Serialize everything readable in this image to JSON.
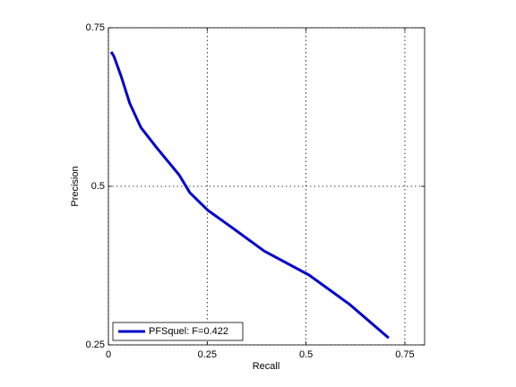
{
  "chart_data": {
    "type": "line",
    "x_label": "Recall",
    "y_label": "Precision",
    "xlim": [
      0,
      0.8
    ],
    "xticks": [
      0,
      0.25,
      0.5,
      0.75
    ],
    "ylim": [
      0.25,
      0.75
    ],
    "yticks": [
      0.25,
      0.5,
      0.75
    ],
    "grid": true,
    "legend": "lower left",
    "x": [
      0.007,
      0.014,
      0.032,
      0.054,
      0.082,
      0.122,
      0.179,
      0.206,
      0.252,
      0.315,
      0.394,
      0.508,
      0.61,
      0.709
    ],
    "series": [
      {
        "name": "PFSquel: F=0.422",
        "color": "#0000cc",
        "values": [
          0.712,
          0.705,
          0.674,
          0.631,
          0.593,
          0.561,
          0.518,
          0.49,
          0.462,
          0.434,
          0.398,
          0.36,
          0.314,
          0.261
        ]
      }
    ]
  }
}
